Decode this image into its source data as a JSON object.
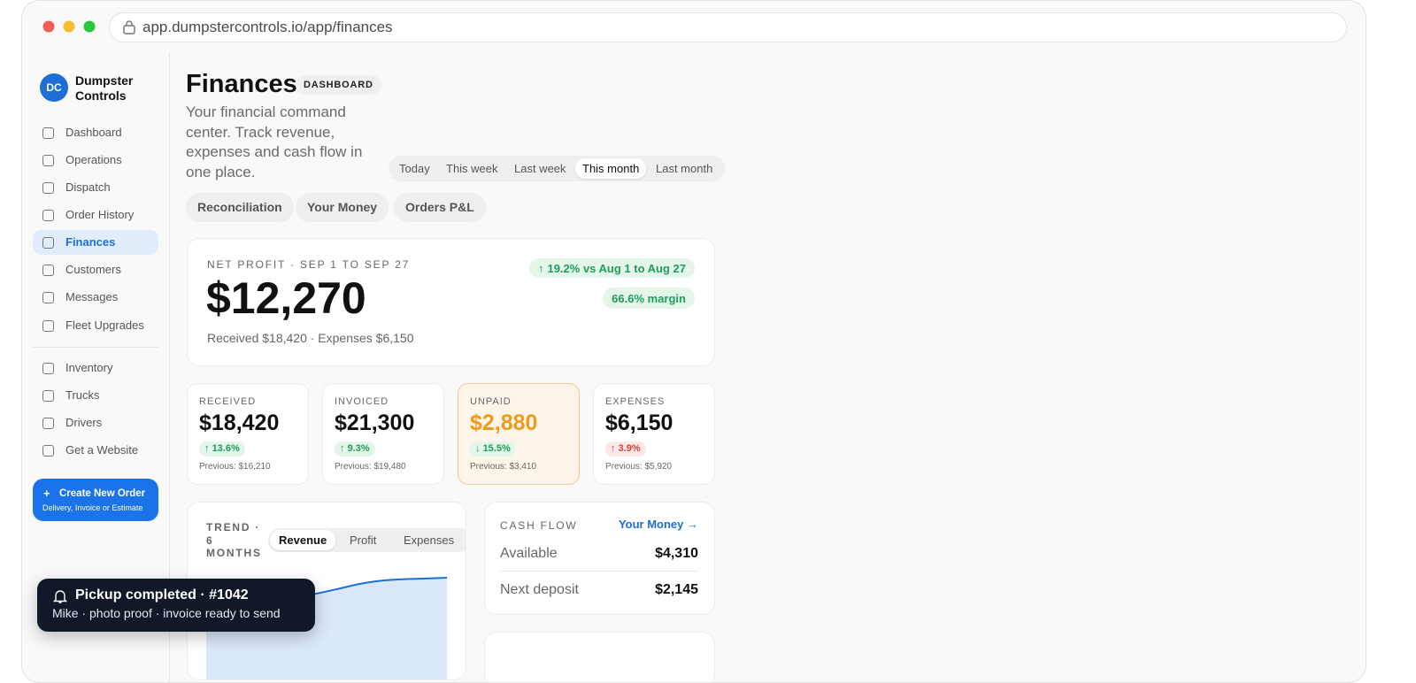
{
  "browser": {
    "url": "app.dumpstercontrols.io/app/finances"
  },
  "sidebar": {
    "logo": "DC",
    "brand": "Dumpster Controls",
    "nav": [
      "Dashboard",
      "Operations",
      "Dispatch",
      "Order History",
      "Finances",
      "Customers",
      "Messages",
      "Fleet Upgrades"
    ],
    "nav_secondary": [
      "Inventory",
      "Trucks",
      "Drivers",
      "Get a Website"
    ],
    "cta": {
      "title": "Create New Order",
      "subtitle": "Delivery, Invoice or Estimate"
    }
  },
  "header": {
    "title": "Finances",
    "badge": "DASHBOARD",
    "subtitle": "Your financial command center. Track revenue, expenses and cash flow in one place."
  },
  "periods": [
    "Today",
    "This week",
    "Last week",
    "This month",
    "Last month"
  ],
  "tabs": [
    "Reconciliation",
    "Your Money",
    "Orders P&L"
  ],
  "net_profit": {
    "label": "NET PROFIT · SEP 1 TO SEP 27",
    "value": "$12,270",
    "detail": "Received $18,420 · Expenses $6,150",
    "change": "19.2% vs Aug 1 to Aug 27",
    "margin": "66.6% margin"
  },
  "kpis": [
    {
      "label": "RECEIVED",
      "value": "$18,420",
      "change": "13.6%",
      "previous": "Previous: $16,210"
    },
    {
      "label": "INVOICED",
      "value": "$21,300",
      "change": "9.3%",
      "previous": "Previous: $19,480"
    },
    {
      "label": "UNPAID",
      "value": "$2,880",
      "change": "15.5%",
      "previous": "Previous: $3,410"
    },
    {
      "label": "EXPENSES",
      "value": "$6,150",
      "change": "3.9%",
      "previous": "Previous: $5,920"
    }
  ],
  "trend": {
    "title": "TREND · 6 MONTHS",
    "tabs": [
      "Revenue",
      "Profit",
      "Expenses"
    ]
  },
  "cash_flow": {
    "title": "CASH FLOW",
    "link": "Your Money",
    "rows": [
      {
        "label": "Available",
        "value": "$4,310"
      },
      {
        "label": "Next deposit",
        "value": "$2,145"
      }
    ]
  },
  "toast": {
    "title": "Pickup completed · #1042",
    "body": "Mike · photo proof · invoice ready to send"
  }
}
